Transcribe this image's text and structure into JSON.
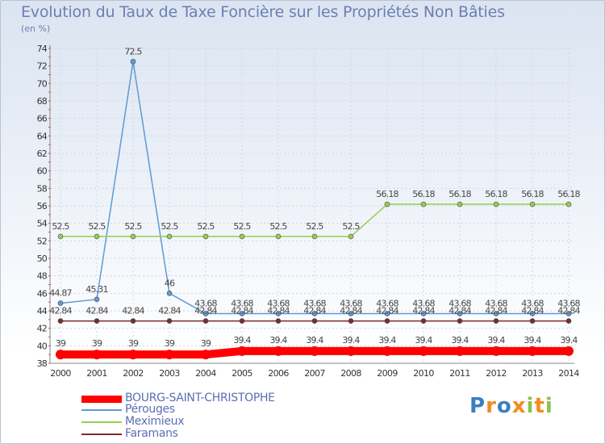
{
  "chart_data": {
    "type": "line",
    "title": "Evolution du Taux de Taxe Foncière sur les Propriétés Non Bâties",
    "unit_label": "(en %)",
    "xlabel": "",
    "ylabel": "",
    "x": [
      "2000",
      "2001",
      "2002",
      "2003",
      "2004",
      "2005",
      "2006",
      "2007",
      "2008",
      "2009",
      "2010",
      "2011",
      "2012",
      "2013",
      "2014"
    ],
    "ylim": [
      38,
      74
    ],
    "yticks": [
      "38",
      "40",
      "42",
      "44",
      "46",
      "48",
      "50",
      "52",
      "54",
      "56",
      "58",
      "60",
      "62",
      "64",
      "66",
      "68",
      "70",
      "72",
      "74"
    ],
    "series": [
      {
        "name": "BOURG-SAINT-CHRISTOPHE",
        "color": "#ff0000",
        "values": [
          39,
          39,
          39,
          39,
          39,
          39.4,
          39.4,
          39.4,
          39.4,
          39.4,
          39.4,
          39.4,
          39.4,
          39.4,
          39.4
        ],
        "labels": [
          "39",
          "39",
          "39",
          "39",
          "39",
          "39.4",
          "39.4",
          "39.4",
          "39.4",
          "39.4",
          "39.4",
          "39.4",
          "39.4",
          "39.4",
          "39.4"
        ]
      },
      {
        "name": "Pérouges",
        "color": "#5b9bd5",
        "values": [
          44.87,
          45.31,
          72.5,
          46,
          43.68,
          43.68,
          43.68,
          43.68,
          43.68,
          43.68,
          43.68,
          43.68,
          43.68,
          43.68,
          43.68
        ],
        "labels": [
          "44.87",
          "45.31",
          "72.5",
          "46",
          "43.68",
          "43.68",
          "43.68",
          "43.68",
          "43.68",
          "43.68",
          "43.68",
          "43.68",
          "43.68",
          "43.68",
          "43.68"
        ]
      },
      {
        "name": "Meximieux",
        "color": "#92d050",
        "values": [
          52.5,
          52.5,
          52.5,
          52.5,
          52.5,
          52.5,
          52.5,
          52.5,
          52.5,
          56.18,
          56.18,
          56.18,
          56.18,
          56.18,
          56.18
        ],
        "labels": [
          "52.5",
          "52.5",
          "52.5",
          "52.5",
          "52.5",
          "52.5",
          "52.5",
          "52.5",
          "52.5",
          "56.18",
          "56.18",
          "56.18",
          "56.18",
          "56.18",
          "56.18"
        ]
      },
      {
        "name": "Faramans",
        "color": "#7b2c2c",
        "values": [
          42.84,
          42.84,
          42.84,
          42.84,
          42.84,
          42.84,
          42.84,
          42.84,
          42.84,
          42.84,
          42.84,
          42.84,
          42.84,
          42.84,
          42.84
        ],
        "labels": [
          "42.84",
          "42.84",
          "42.84",
          "42.84",
          "42.84",
          "42.84",
          "42.84",
          "42.84",
          "42.84",
          "42.84",
          "42.84",
          "42.84",
          "42.84",
          "42.84",
          "42.84"
        ]
      }
    ],
    "legend_position": "bottom"
  },
  "logo": {
    "text": "Proxiti"
  }
}
